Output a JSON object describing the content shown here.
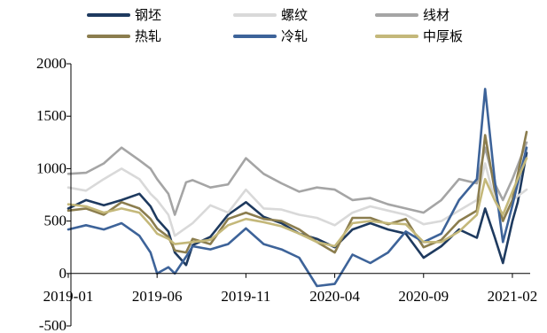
{
  "chart_data": {
    "type": "line",
    "title": "",
    "xlabel": "",
    "ylabel": "",
    "ylim": [
      -500,
      2000
    ],
    "yticks": [
      -500,
      0,
      500,
      1000,
      1500,
      2000
    ],
    "ytick_labels": [
      "-500",
      "0",
      "500",
      "1000",
      "1500",
      "2000"
    ],
    "x_date_range": [
      "2019-01",
      "2021-03"
    ],
    "xticks": [
      "2019-01",
      "2019-06",
      "2019-11",
      "2020-04",
      "2020-09",
      "2021-02"
    ],
    "xtick_labels": [
      "2019-01",
      "2019-06",
      "2019-11",
      "2020-04",
      "2020-09",
      "2021-02"
    ],
    "grid": false,
    "legend_position": "top",
    "series": [
      {
        "name": "钢坯",
        "color": "#1e3a5f",
        "points": [
          [
            "2019-01",
            620
          ],
          [
            "2019-02",
            700
          ],
          [
            "2019-03",
            650
          ],
          [
            "2019-04",
            700
          ],
          [
            "2019-05",
            760
          ],
          [
            "2019-05-20",
            640
          ],
          [
            "2019-06",
            520
          ],
          [
            "2019-06-20",
            400
          ],
          [
            "2019-07",
            200
          ],
          [
            "2019-07-20",
            80
          ],
          [
            "2019-08",
            270
          ],
          [
            "2019-09",
            350
          ],
          [
            "2019-10",
            560
          ],
          [
            "2019-11",
            680
          ],
          [
            "2019-12",
            540
          ],
          [
            "2020-01",
            480
          ],
          [
            "2020-02",
            380
          ],
          [
            "2020-03",
            330
          ],
          [
            "2020-04",
            250
          ],
          [
            "2020-05",
            420
          ],
          [
            "2020-06",
            480
          ],
          [
            "2020-07",
            420
          ],
          [
            "2020-08",
            380
          ],
          [
            "2020-09",
            150
          ],
          [
            "2020-10",
            260
          ],
          [
            "2020-11",
            420
          ],
          [
            "2020-12",
            340
          ],
          [
            "2020-12-15",
            620
          ],
          [
            "2021-01",
            350
          ],
          [
            "2021-01-15",
            100
          ],
          [
            "2021-02",
            500
          ],
          [
            "2021-02-10",
            680
          ],
          [
            "2021-02-25",
            1150
          ]
        ]
      },
      {
        "name": "螺纹",
        "color": "#d9d9d9",
        "points": [
          [
            "2019-01",
            820
          ],
          [
            "2019-02",
            790
          ],
          [
            "2019-03",
            900
          ],
          [
            "2019-04",
            1000
          ],
          [
            "2019-05",
            900
          ],
          [
            "2019-05-20",
            760
          ],
          [
            "2019-06",
            700
          ],
          [
            "2019-06-20",
            560
          ],
          [
            "2019-07",
            360
          ],
          [
            "2019-08",
            480
          ],
          [
            "2019-09",
            650
          ],
          [
            "2019-10",
            580
          ],
          [
            "2019-11",
            800
          ],
          [
            "2019-12",
            620
          ],
          [
            "2020-01",
            610
          ],
          [
            "2020-02",
            560
          ],
          [
            "2020-03",
            530
          ],
          [
            "2020-04",
            460
          ],
          [
            "2020-05",
            580
          ],
          [
            "2020-06",
            640
          ],
          [
            "2020-07",
            600
          ],
          [
            "2020-08",
            560
          ],
          [
            "2020-09",
            470
          ],
          [
            "2020-10",
            500
          ],
          [
            "2020-11",
            600
          ],
          [
            "2020-12",
            700
          ],
          [
            "2020-12-15",
            1050
          ],
          [
            "2021-01",
            700
          ],
          [
            "2021-01-15",
            520
          ],
          [
            "2021-02",
            700
          ],
          [
            "2021-02-25",
            800
          ]
        ]
      },
      {
        "name": "线材",
        "color": "#a5a5a5",
        "points": [
          [
            "2019-01",
            950
          ],
          [
            "2019-02",
            960
          ],
          [
            "2019-03",
            1050
          ],
          [
            "2019-04",
            1200
          ],
          [
            "2019-05",
            1080
          ],
          [
            "2019-05-20",
            1000
          ],
          [
            "2019-06",
            900
          ],
          [
            "2019-06-20",
            760
          ],
          [
            "2019-07",
            560
          ],
          [
            "2019-07-20",
            870
          ],
          [
            "2019-08",
            890
          ],
          [
            "2019-09",
            820
          ],
          [
            "2019-10",
            850
          ],
          [
            "2019-11",
            1100
          ],
          [
            "2019-12",
            950
          ],
          [
            "2020-01",
            860
          ],
          [
            "2020-02",
            780
          ],
          [
            "2020-03",
            820
          ],
          [
            "2020-04",
            800
          ],
          [
            "2020-05",
            700
          ],
          [
            "2020-06",
            720
          ],
          [
            "2020-07",
            660
          ],
          [
            "2020-08",
            620
          ],
          [
            "2020-09",
            580
          ],
          [
            "2020-10",
            700
          ],
          [
            "2020-11",
            900
          ],
          [
            "2020-12",
            860
          ],
          [
            "2020-12-15",
            1200
          ],
          [
            "2021-01",
            860
          ],
          [
            "2021-01-15",
            700
          ],
          [
            "2021-02",
            900
          ],
          [
            "2021-02-25",
            1250
          ]
        ]
      },
      {
        "name": "热轧",
        "color": "#8b7d4e",
        "points": [
          [
            "2019-01",
            600
          ],
          [
            "2019-02",
            620
          ],
          [
            "2019-03",
            560
          ],
          [
            "2019-04",
            680
          ],
          [
            "2019-05",
            620
          ],
          [
            "2019-05-20",
            520
          ],
          [
            "2019-06",
            430
          ],
          [
            "2019-06-20",
            350
          ],
          [
            "2019-07",
            220
          ],
          [
            "2019-07-20",
            200
          ],
          [
            "2019-08",
            330
          ],
          [
            "2019-09",
            280
          ],
          [
            "2019-10",
            520
          ],
          [
            "2019-11",
            580
          ],
          [
            "2019-12",
            520
          ],
          [
            "2020-01",
            500
          ],
          [
            "2020-02",
            420
          ],
          [
            "2020-03",
            300
          ],
          [
            "2020-04",
            200
          ],
          [
            "2020-05",
            530
          ],
          [
            "2020-06",
            530
          ],
          [
            "2020-07",
            470
          ],
          [
            "2020-08",
            520
          ],
          [
            "2020-09",
            250
          ],
          [
            "2020-10",
            320
          ],
          [
            "2020-11",
            500
          ],
          [
            "2020-12",
            600
          ],
          [
            "2020-12-15",
            1320
          ],
          [
            "2021-01",
            800
          ],
          [
            "2021-01-15",
            500
          ],
          [
            "2021-02",
            700
          ],
          [
            "2021-02-25",
            1350
          ]
        ]
      },
      {
        "name": "冷轧",
        "color": "#3d6399",
        "points": [
          [
            "2019-01",
            420
          ],
          [
            "2019-02",
            460
          ],
          [
            "2019-03",
            420
          ],
          [
            "2019-04",
            480
          ],
          [
            "2019-05",
            360
          ],
          [
            "2019-05-20",
            200
          ],
          [
            "2019-06",
            0
          ],
          [
            "2019-06-20",
            60
          ],
          [
            "2019-07",
            0
          ],
          [
            "2019-07-20",
            160
          ],
          [
            "2019-08",
            260
          ],
          [
            "2019-09",
            230
          ],
          [
            "2019-10",
            280
          ],
          [
            "2019-11",
            430
          ],
          [
            "2019-12",
            280
          ],
          [
            "2020-01",
            230
          ],
          [
            "2020-02",
            150
          ],
          [
            "2020-03",
            -120
          ],
          [
            "2020-04",
            -100
          ],
          [
            "2020-05",
            180
          ],
          [
            "2020-06",
            100
          ],
          [
            "2020-07",
            200
          ],
          [
            "2020-08",
            400
          ],
          [
            "2020-09",
            300
          ],
          [
            "2020-10",
            380
          ],
          [
            "2020-11",
            700
          ],
          [
            "2020-12",
            900
          ],
          [
            "2020-12-15",
            1760
          ],
          [
            "2021-01",
            900
          ],
          [
            "2021-01-15",
            300
          ],
          [
            "2021-02",
            650
          ],
          [
            "2021-02-25",
            1200
          ]
        ]
      },
      {
        "name": "中厚板",
        "color": "#c4b87a",
        "points": [
          [
            "2019-01",
            660
          ],
          [
            "2019-02",
            640
          ],
          [
            "2019-03",
            580
          ],
          [
            "2019-04",
            620
          ],
          [
            "2019-05",
            580
          ],
          [
            "2019-05-20",
            460
          ],
          [
            "2019-06",
            380
          ],
          [
            "2019-06-20",
            330
          ],
          [
            "2019-07",
            280
          ],
          [
            "2019-08",
            300
          ],
          [
            "2019-09",
            320
          ],
          [
            "2019-10",
            460
          ],
          [
            "2019-11",
            520
          ],
          [
            "2019-12",
            490
          ],
          [
            "2020-01",
            450
          ],
          [
            "2020-02",
            380
          ],
          [
            "2020-03",
            300
          ],
          [
            "2020-04",
            260
          ],
          [
            "2020-05",
            480
          ],
          [
            "2020-06",
            500
          ],
          [
            "2020-07",
            480
          ],
          [
            "2020-08",
            470
          ],
          [
            "2020-09",
            300
          ],
          [
            "2020-10",
            300
          ],
          [
            "2020-11",
            400
          ],
          [
            "2020-12",
            560
          ],
          [
            "2020-12-15",
            900
          ],
          [
            "2021-01",
            700
          ],
          [
            "2021-01-15",
            560
          ],
          [
            "2021-02",
            780
          ],
          [
            "2021-02-25",
            1100
          ]
        ]
      }
    ]
  }
}
